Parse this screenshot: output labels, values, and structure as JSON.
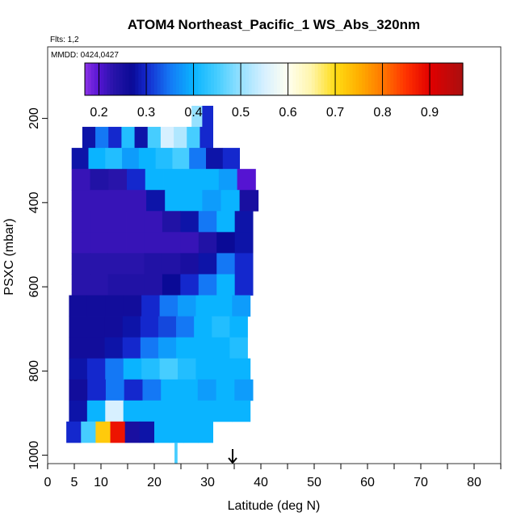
{
  "chart_data": {
    "type": "heatmap",
    "title": "ATOM4 Northeast_Pacific_1 WS_Abs_320nm",
    "notes": {
      "flights": "Flts: 1,2",
      "dates": "MMDD: 0424,0427"
    },
    "xlabel": "Latitude (deg N)",
    "ylabel": "PSXC (mbar)",
    "xlim": [
      0,
      85
    ],
    "ylim": [
      1020,
      30
    ],
    "y_reversed": true,
    "x_major_ticks": [
      0,
      5,
      10,
      20,
      30,
      40,
      50,
      60,
      70,
      80
    ],
    "x_minor_ticks": [
      15,
      25,
      35,
      45,
      55,
      65,
      75,
      85
    ],
    "x_tick_labels": [
      "0",
      "5",
      "10",
      "20",
      "30",
      "40",
      "50",
      "60",
      "70",
      "80"
    ],
    "y_ticks": [
      200,
      400,
      600,
      800,
      1000
    ],
    "y_tick_labels": [
      "200",
      "400",
      "600",
      "800",
      "1000"
    ],
    "colorbar": {
      "ticks": [
        0.2,
        0.3,
        0.4,
        0.5,
        0.6,
        0.7,
        0.8,
        0.9
      ],
      "tick_labels": [
        "0.2",
        "0.3",
        "0.4",
        "0.5",
        "0.6",
        "0.7",
        "0.8",
        "0.9"
      ],
      "range": [
        0.17,
        0.97
      ]
    },
    "marker": {
      "type": "arrow",
      "latitude": 34.7
    },
    "bands": [
      {
        "p": [
          170,
          220
        ],
        "lat": [
          27,
          31
        ],
        "v": [
          0.5,
          0.3
        ]
      },
      {
        "p": [
          220,
          270
        ],
        "lat": [
          6.5,
          31
        ],
        "v": [
          0.28,
          0.35,
          0.3,
          0.42,
          0.28,
          0.45,
          0.55,
          0.52,
          0.45,
          0.3
        ]
      },
      {
        "p": [
          270,
          320
        ],
        "lat": [
          4.5,
          36
        ],
        "v": [
          0.28,
          0.4,
          0.42,
          0.38,
          0.4,
          0.42,
          0.45,
          0.35,
          0.28,
          0.3
        ]
      },
      {
        "p": [
          320,
          370
        ],
        "lat": [
          4.5,
          39
        ],
        "v": [
          0.22,
          0.24,
          0.23,
          0.3,
          0.4,
          0.4,
          0.4,
          0.4,
          0.38,
          0.2
        ]
      },
      {
        "p": [
          370,
          420
        ],
        "lat": [
          4.5,
          39.5
        ],
        "v": [
          0.22,
          0.22,
          0.22,
          0.22,
          0.28,
          0.4,
          0.4,
          0.38,
          0.4,
          0.25
        ]
      },
      {
        "p": [
          420,
          470
        ],
        "lat": [
          4.5,
          38.5
        ],
        "v": [
          0.22,
          0.22,
          0.22,
          0.22,
          0.22,
          0.24,
          0.28,
          0.35,
          0.4,
          0.28
        ]
      },
      {
        "p": [
          470,
          520
        ],
        "lat": [
          4.5,
          38.5
        ],
        "v": [
          0.22,
          0.22,
          0.22,
          0.22,
          0.22,
          0.22,
          0.22,
          0.24,
          0.27,
          0.28
        ]
      },
      {
        "p": [
          520,
          570
        ],
        "lat": [
          4.5,
          38.5
        ],
        "v": [
          0.23,
          0.23,
          0.23,
          0.23,
          0.24,
          0.24,
          0.25,
          0.28,
          0.35,
          0.3
        ]
      },
      {
        "p": [
          570,
          620
        ],
        "lat": [
          4.5,
          38.5
        ],
        "v": [
          0.23,
          0.23,
          0.24,
          0.24,
          0.24,
          0.27,
          0.3,
          0.35,
          0.4,
          0.3
        ]
      },
      {
        "p": [
          620,
          670
        ],
        "lat": [
          4,
          38
        ],
        "v": [
          0.26,
          0.26,
          0.26,
          0.26,
          0.3,
          0.35,
          0.38,
          0.4,
          0.4,
          0.38
        ]
      },
      {
        "p": [
          670,
          720
        ],
        "lat": [
          4,
          37.5
        ],
        "v": [
          0.26,
          0.26,
          0.26,
          0.28,
          0.3,
          0.32,
          0.35,
          0.4,
          0.42,
          0.4
        ]
      },
      {
        "p": [
          720,
          770
        ],
        "lat": [
          4,
          37.5
        ],
        "v": [
          0.26,
          0.26,
          0.28,
          0.3,
          0.35,
          0.38,
          0.4,
          0.4,
          0.4,
          0.42
        ]
      },
      {
        "p": [
          770,
          820
        ],
        "lat": [
          4,
          38
        ],
        "v": [
          0.28,
          0.3,
          0.35,
          0.4,
          0.42,
          0.45,
          0.42,
          0.4,
          0.4,
          0.4
        ]
      },
      {
        "p": [
          820,
          870
        ],
        "lat": [
          4,
          38.5
        ],
        "v": [
          0.26,
          0.3,
          0.35,
          0.3,
          0.35,
          0.4,
          0.4,
          0.38,
          0.4,
          0.38
        ]
      },
      {
        "p": [
          870,
          920
        ],
        "lat": [
          4,
          38
        ],
        "v": [
          0.28,
          0.4,
          0.55,
          0.4,
          0.4,
          0.4,
          0.4,
          0.4,
          0.4,
          0.4
        ]
      },
      {
        "p": [
          920,
          970
        ],
        "lat": [
          3.5,
          31
        ],
        "v": [
          0.3,
          0.45,
          0.72,
          0.88,
          0.25,
          0.28,
          0.4,
          0.4,
          0.4,
          0.4
        ]
      },
      {
        "p": [
          970,
          1020
        ],
        "lat": [
          23.8,
          24.3
        ],
        "v": [
          0.45
        ]
      }
    ]
  }
}
